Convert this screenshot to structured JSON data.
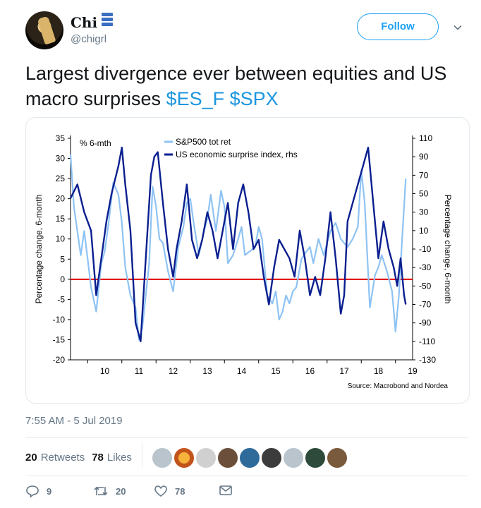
{
  "tweet": {
    "display_name": "Chi",
    "handle": "@chigrl",
    "follow_label": "Follow",
    "text_main": "Largest divergence ever between equities and US macro surprises ",
    "cashtags": "$ES_F $SPX",
    "timestamp": "7:55 AM - 5 Jul 2019",
    "retweets_count": "20",
    "retweets_label": "Retweets",
    "likes_count": "78",
    "likes_label": "Likes",
    "reply_count": "9",
    "retweet_action_count": "20",
    "like_action_count": "78"
  },
  "colors": {
    "brand_blue": "#1da1f2",
    "cashtag_blue": "#1b95e0",
    "muted_text": "#657786",
    "series_light": "#8ec3f3",
    "series_dark": "#0a1f8f",
    "zero_line": "#e00000"
  },
  "icons": [
    "chevron-down-icon",
    "reply-icon",
    "retweet-icon",
    "like-icon",
    "message-icon"
  ],
  "chart_data": {
    "type": "line",
    "left_label": "% 6-mth",
    "ylabel_left": "Percentage change, 6-month",
    "ylabel_right": "Percentage change, 6-month",
    "source": "Source: Macrobond and Nordea",
    "y_left_ticks": [
      "35",
      "30",
      "25",
      "20",
      "15",
      "10",
      "5",
      "0",
      "-5",
      "-10",
      "-15",
      "-20"
    ],
    "y_right_ticks": [
      "110",
      "90",
      "70",
      "50",
      "30",
      "10",
      "-10",
      "-30",
      "-50",
      "-70",
      "-90",
      "-110",
      "-130"
    ],
    "x_ticks": [
      "10",
      "11",
      "12",
      "13",
      "14",
      "15",
      "16",
      "17",
      "18",
      "19"
    ],
    "ylim_left": [
      -20,
      35
    ],
    "ylim_right": [
      -130,
      110
    ],
    "zero_line": 0,
    "series": [
      {
        "name": "S&P500 tot ret",
        "axis": "left",
        "x": [
          2009.5,
          2009.6,
          2009.8,
          2009.9,
          2010.0,
          2010.1,
          2010.25,
          2010.4,
          2010.5,
          2010.6,
          2010.75,
          2010.9,
          2011.0,
          2011.1,
          2011.25,
          2011.4,
          2011.5,
          2011.6,
          2011.7,
          2011.8,
          2011.9,
          2012.0,
          2012.1,
          2012.2,
          2012.35,
          2012.5,
          2012.65,
          2012.8,
          2012.9,
          2013.0,
          2013.1,
          2013.25,
          2013.4,
          2013.5,
          2013.6,
          2013.75,
          2013.9,
          2014.0,
          2014.1,
          2014.25,
          2014.4,
          2014.5,
          2014.6,
          2014.75,
          2014.9,
          2015.0,
          2015.1,
          2015.25,
          2015.4,
          2015.5,
          2015.6,
          2015.7,
          2015.8,
          2015.9,
          2016.0,
          2016.1,
          2016.25,
          2016.4,
          2016.5,
          2016.6,
          2016.75,
          2016.9,
          2017.0,
          2017.1,
          2017.25,
          2017.4,
          2017.5,
          2017.6,
          2017.75,
          2017.9,
          2018.0,
          2018.1,
          2018.25,
          2018.4,
          2018.5,
          2018.6,
          2018.75,
          2018.9,
          2019.0,
          2019.1,
          2019.2,
          2019.3
        ],
        "values": [
          31,
          18,
          6,
          12,
          5,
          -2,
          -8,
          4,
          7,
          13,
          24,
          21,
          14,
          3,
          -4,
          -7,
          -15,
          -12,
          -4,
          4,
          23,
          18,
          10,
          9,
          2,
          -3,
          8,
          13,
          19,
          20,
          14,
          6,
          12,
          15,
          21,
          12,
          22,
          18,
          4,
          6,
          10,
          13,
          6,
          7,
          8,
          13,
          10,
          -4,
          -6,
          -3,
          -10,
          -8,
          -4,
          -6,
          -3,
          -2,
          5,
          7,
          8,
          4,
          10,
          6,
          9,
          12,
          14,
          10,
          9,
          8,
          10,
          13,
          27,
          19,
          -7,
          1,
          3,
          6,
          2,
          -3,
          -13,
          -4,
          11,
          25
        ]
      },
      {
        "name": "US economic surprise index, rhs",
        "axis": "right",
        "x": [
          2009.5,
          2009.7,
          2009.9,
          2010.1,
          2010.25,
          2010.4,
          2010.55,
          2010.7,
          2010.8,
          2010.9,
          2011.0,
          2011.1,
          2011.25,
          2011.4,
          2011.55,
          2011.7,
          2011.85,
          2011.95,
          2012.05,
          2012.2,
          2012.35,
          2012.5,
          2012.6,
          2012.75,
          2012.9,
          2013.05,
          2013.2,
          2013.35,
          2013.5,
          2013.65,
          2013.8,
          2013.95,
          2014.1,
          2014.25,
          2014.4,
          2014.55,
          2014.7,
          2014.85,
          2015.0,
          2015.15,
          2015.3,
          2015.45,
          2015.6,
          2015.75,
          2015.9,
          2016.05,
          2016.2,
          2016.35,
          2016.5,
          2016.65,
          2016.8,
          2016.95,
          2017.1,
          2017.25,
          2017.4,
          2017.5,
          2017.6,
          2017.75,
          2017.9,
          2018.05,
          2018.2,
          2018.35,
          2018.5,
          2018.65,
          2018.8,
          2018.95,
          2019.05,
          2019.15,
          2019.25,
          2019.3
        ],
        "values": [
          45,
          60,
          30,
          10,
          -60,
          -20,
          20,
          50,
          65,
          80,
          100,
          60,
          10,
          -90,
          -110,
          -20,
          70,
          90,
          95,
          40,
          -10,
          -40,
          -10,
          20,
          60,
          0,
          -20,
          0,
          30,
          10,
          -20,
          10,
          40,
          -10,
          40,
          60,
          30,
          -10,
          0,
          -40,
          -70,
          -30,
          0,
          -10,
          -20,
          -40,
          10,
          -20,
          -60,
          -40,
          -60,
          -20,
          30,
          -20,
          -80,
          -60,
          20,
          40,
          60,
          80,
          100,
          40,
          -20,
          20,
          -10,
          -30,
          -50,
          -20,
          -60,
          -70
        ]
      }
    ]
  }
}
